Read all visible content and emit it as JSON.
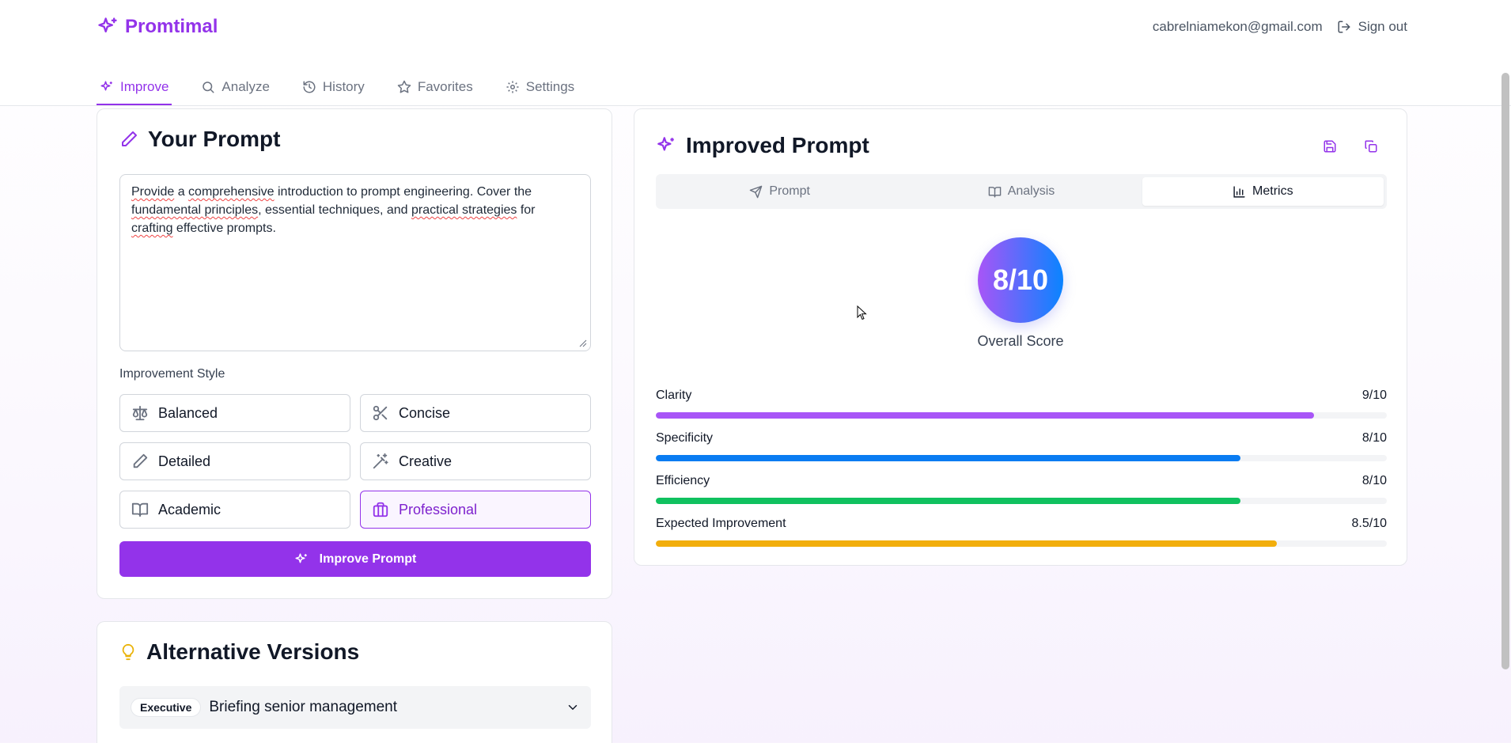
{
  "app": {
    "name": "Promtimal"
  },
  "user": {
    "email": "cabrelniamekon@gmail.com",
    "signout_label": "Sign out"
  },
  "nav": [
    {
      "label": "Improve",
      "icon": "sparkles-icon",
      "active": true
    },
    {
      "label": "Analyze",
      "icon": "search-icon"
    },
    {
      "label": "History",
      "icon": "history-icon"
    },
    {
      "label": "Favorites",
      "icon": "star-icon"
    },
    {
      "label": "Settings",
      "icon": "gear-icon"
    }
  ],
  "your_prompt": {
    "title": "Your Prompt",
    "text_parts": [
      {
        "t": "Provide",
        "misspelled": true
      },
      {
        "t": " a ",
        "misspelled": false
      },
      {
        "t": "comprehensive",
        "misspelled": true
      },
      {
        "t": " introduction to prompt engineering. Cover the ",
        "misspelled": false
      },
      {
        "t": "fundamental principles",
        "misspelled": true
      },
      {
        "t": ", essential techniques, and ",
        "misspelled": false
      },
      {
        "t": "practical strategies",
        "misspelled": true
      },
      {
        "t": " for ",
        "misspelled": false
      },
      {
        "t": "crafting",
        "misspelled": true
      },
      {
        "t": " effective prompts.",
        "misspelled": false
      }
    ],
    "style_label": "Improvement Style",
    "styles": [
      {
        "label": "Balanced",
        "icon": "scale-icon"
      },
      {
        "label": "Concise",
        "icon": "scissors-icon"
      },
      {
        "label": "Detailed",
        "icon": "pencil-icon"
      },
      {
        "label": "Creative",
        "icon": "magic-wand-icon"
      },
      {
        "label": "Academic",
        "icon": "book-icon"
      },
      {
        "label": "Professional",
        "icon": "briefcase-icon",
        "active": true
      }
    ],
    "improve_button": "Improve Prompt"
  },
  "improved": {
    "title": "Improved Prompt",
    "tabs": [
      {
        "label": "Prompt",
        "icon": "send-icon"
      },
      {
        "label": "Analysis",
        "icon": "book-icon"
      },
      {
        "label": "Metrics",
        "icon": "bar-chart-icon",
        "active": true
      }
    ],
    "overall_score": "8/10",
    "overall_label": "Overall Score",
    "metrics": [
      {
        "label": "Clarity",
        "value": "9/10",
        "fraction": 0.9,
        "color": "#a855f7"
      },
      {
        "label": "Specificity",
        "value": "8/10",
        "fraction": 0.8,
        "color": "#0a7cf2"
      },
      {
        "label": "Efficiency",
        "value": "8/10",
        "fraction": 0.8,
        "color": "#10c15f"
      },
      {
        "label": "Expected Improvement",
        "value": "8.5/10",
        "fraction": 0.85,
        "color": "#f2ae0c"
      }
    ]
  },
  "alternatives": {
    "title": "Alternative Versions",
    "items": [
      {
        "badge": "Executive",
        "text": "Briefing senior management"
      }
    ]
  },
  "colors": {
    "accent": "#9333ea",
    "accent_light": "#faf5ff",
    "alt_icon": "#eab308"
  }
}
